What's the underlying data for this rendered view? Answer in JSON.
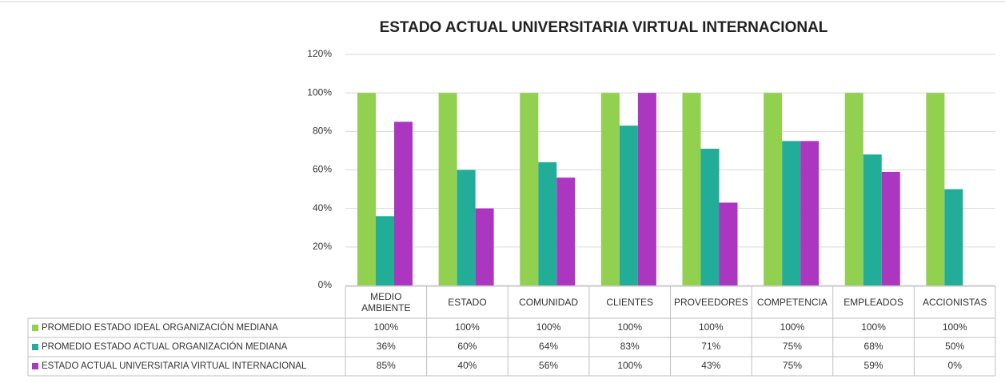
{
  "chart_data": {
    "type": "bar",
    "title": "ESTADO ACTUAL UNIVERSITARIA VIRTUAL INTERNACIONAL",
    "categories": [
      "MEDIO AMBIENTE",
      "ESTADO",
      "COMUNIDAD",
      "CLIENTES",
      "PROVEEDORES",
      "COMPETENCIA",
      "EMPLEADOS",
      "ACCIONISTAS"
    ],
    "series": [
      {
        "name": "PROMEDIO ESTADO IDEAL ORGANIZACIÓN MEDIANA",
        "color": "#92d050",
        "values": [
          100,
          100,
          100,
          100,
          100,
          100,
          100,
          100
        ],
        "value_labels": [
          "100%",
          "100%",
          "100%",
          "100%",
          "100%",
          "100%",
          "100%",
          "100%"
        ]
      },
      {
        "name": "PROMEDIO ESTADO ACTUAL ORGANIZACIÓN MEDIANA",
        "color": "#22ad98",
        "values": [
          36,
          60,
          64,
          83,
          71,
          75,
          68,
          50
        ],
        "value_labels": [
          "36%",
          "60%",
          "64%",
          "83%",
          "71%",
          "75%",
          "68%",
          "50%"
        ]
      },
      {
        "name": "ESTADO ACTUAL UNIVERSITARIA VIRTUAL INTERNACIONAL",
        "color": "#ab37c0",
        "values": [
          85,
          40,
          56,
          100,
          43,
          75,
          59,
          0
        ],
        "value_labels": [
          "85%",
          "40%",
          "56%",
          "100%",
          "43%",
          "75%",
          "59%",
          "0%"
        ]
      }
    ],
    "ylim": [
      0,
      120
    ],
    "yticks": [
      {
        "value": 0,
        "label": "0%"
      },
      {
        "value": 20,
        "label": "20%"
      },
      {
        "value": 40,
        "label": "40%"
      },
      {
        "value": 60,
        "label": "60%"
      },
      {
        "value": 80,
        "label": "80%"
      },
      {
        "value": 100,
        "label": "100%"
      },
      {
        "value": 120,
        "label": "120%"
      }
    ],
    "grid": true
  }
}
